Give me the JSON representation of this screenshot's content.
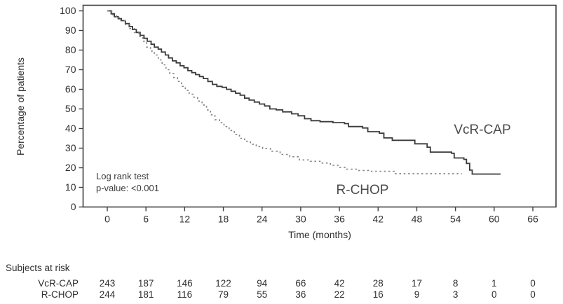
{
  "chart_data": {
    "type": "line",
    "subtype": "kaplan-meier-step-curves",
    "title": "",
    "x_label": "Time (months)",
    "y_label": "Percentage of patients",
    "x_range": [
      0,
      66
    ],
    "y_range": [
      0,
      100
    ],
    "x_ticks": [
      0,
      6,
      12,
      18,
      24,
      30,
      36,
      42,
      48,
      54,
      60,
      66
    ],
    "y_ticks": [
      0,
      10,
      20,
      30,
      40,
      50,
      60,
      70,
      80,
      90,
      100
    ],
    "grid": "off",
    "legend_position": "labels-inside-plot",
    "annotation": {
      "line1": "Log rank test",
      "line2": "p-value: <0.001"
    },
    "series": [
      {
        "name": "VcR-CAP",
        "style": "solid",
        "color": "#3b3b3b",
        "points": [
          [
            0,
            100
          ],
          [
            0.6,
            98.5
          ],
          [
            1.1,
            97
          ],
          [
            1.7,
            96
          ],
          [
            2.2,
            95
          ],
          [
            2.8,
            93.5
          ],
          [
            3.4,
            92
          ],
          [
            3.9,
            90.5
          ],
          [
            4.5,
            89
          ],
          [
            5.1,
            87.5
          ],
          [
            5.7,
            86
          ],
          [
            6.2,
            84.5
          ],
          [
            6.8,
            83
          ],
          [
            7.3,
            81.5
          ],
          [
            7.9,
            80.5
          ],
          [
            8.4,
            79
          ],
          [
            9,
            77.5
          ],
          [
            9.5,
            76
          ],
          [
            10.1,
            74.5
          ],
          [
            10.7,
            73.5
          ],
          [
            11.3,
            72
          ],
          [
            11.9,
            71
          ],
          [
            12.5,
            69.5
          ],
          [
            13.1,
            68.5
          ],
          [
            13.7,
            67.5
          ],
          [
            14.3,
            66.5
          ],
          [
            14.9,
            65.5
          ],
          [
            15.6,
            64
          ],
          [
            16.3,
            62.5
          ],
          [
            17,
            61.5
          ],
          [
            17.8,
            61
          ],
          [
            18.5,
            60
          ],
          [
            19.2,
            59
          ],
          [
            19.9,
            58
          ],
          [
            20.6,
            57
          ],
          [
            21.3,
            55.5
          ],
          [
            22,
            54.5
          ],
          [
            22.8,
            53.5
          ],
          [
            23.6,
            52.5
          ],
          [
            24.4,
            51.5
          ],
          [
            25.2,
            50
          ],
          [
            26.2,
            49.5
          ],
          [
            27.2,
            48.5
          ],
          [
            28.6,
            47.5
          ],
          [
            29.6,
            46.5
          ],
          [
            30.6,
            45
          ],
          [
            31.6,
            44
          ],
          [
            33,
            43.5
          ],
          [
            35,
            43
          ],
          [
            36.8,
            42.5
          ],
          [
            37.4,
            41
          ],
          [
            39.6,
            40.3
          ],
          [
            40.4,
            38.4
          ],
          [
            42.2,
            37.6
          ],
          [
            42.9,
            35.2
          ],
          [
            44.2,
            34
          ],
          [
            47.7,
            32.2
          ],
          [
            49.6,
            30.5
          ],
          [
            50.1,
            28
          ],
          [
            53.4,
            27.4
          ],
          [
            53.8,
            25
          ],
          [
            55.3,
            24.3
          ],
          [
            55.7,
            22.2
          ],
          [
            56.2,
            18.8
          ],
          [
            56.6,
            16.8
          ],
          [
            61,
            16.8
          ]
        ]
      },
      {
        "name": "R-CHOP",
        "style": "dashed",
        "color": "#828282",
        "points": [
          [
            0,
            100
          ],
          [
            0.7,
            98
          ],
          [
            1.4,
            96.5
          ],
          [
            2.1,
            95
          ],
          [
            2.8,
            93
          ],
          [
            3.5,
            91
          ],
          [
            4.2,
            89
          ],
          [
            4.9,
            87
          ],
          [
            5.5,
            84.5
          ],
          [
            6.1,
            81.5
          ],
          [
            6.7,
            79.5
          ],
          [
            7.3,
            77.5
          ],
          [
            7.9,
            75
          ],
          [
            8.5,
            72.5
          ],
          [
            9.1,
            70
          ],
          [
            9.7,
            68
          ],
          [
            10.3,
            66
          ],
          [
            10.9,
            64
          ],
          [
            11.5,
            61.5
          ],
          [
            12.1,
            59.5
          ],
          [
            12.7,
            57.5
          ],
          [
            13.3,
            56
          ],
          [
            14,
            54
          ],
          [
            14.7,
            52
          ],
          [
            15.4,
            49.5
          ],
          [
            16,
            47
          ],
          [
            16.7,
            44.5
          ],
          [
            17.4,
            43
          ],
          [
            18.1,
            41
          ],
          [
            18.9,
            39
          ],
          [
            19.7,
            37
          ],
          [
            20.5,
            35
          ],
          [
            21.3,
            33.5
          ],
          [
            22.2,
            32
          ],
          [
            23.1,
            30.8
          ],
          [
            24.1,
            29.8
          ],
          [
            25.3,
            28.4
          ],
          [
            26.8,
            26.8
          ],
          [
            28.3,
            25.6
          ],
          [
            29.8,
            24
          ],
          [
            31.5,
            23.3
          ],
          [
            33.2,
            22.4
          ],
          [
            34.6,
            21.3
          ],
          [
            35.8,
            20.2
          ],
          [
            37,
            19.3
          ],
          [
            38.8,
            18.6
          ],
          [
            40.5,
            18.2
          ],
          [
            44.7,
            17
          ],
          [
            55,
            17
          ]
        ]
      }
    ]
  },
  "risk_table": {
    "title": "Subjects at risk",
    "time_points": [
      0,
      6,
      12,
      18,
      24,
      30,
      36,
      42,
      48,
      54,
      60,
      66
    ],
    "rows": [
      {
        "label": "VcR-CAP",
        "values": [
          243,
          187,
          146,
          122,
          94,
          66,
          42,
          28,
          17,
          8,
          1,
          0
        ]
      },
      {
        "label": "R-CHOP",
        "values": [
          244,
          181,
          116,
          79,
          55,
          36,
          22,
          16,
          9,
          3,
          0,
          0
        ]
      }
    ]
  }
}
